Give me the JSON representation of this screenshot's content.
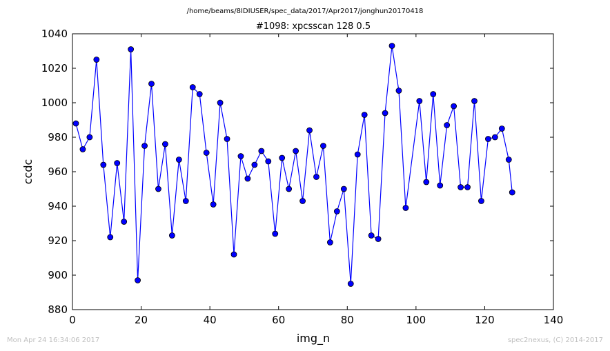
{
  "path_title": "/home/beams/8IDIUSER/spec_data/2017/Apr2017/jonghun20170418",
  "footer": {
    "timestamp": "Mon Apr 24 16:34:06 2017",
    "credit": "spec2nexus, (C) 2014-2017"
  },
  "colors": {
    "line": "#0000ff",
    "marker_fill": "#0000ff",
    "marker_edge": "#000000"
  },
  "chart_data": {
    "type": "line",
    "title": "#1098: xpcsscan 128 0.5",
    "xlabel": "img_n",
    "ylabel": "ccdc",
    "xlim": [
      0,
      140
    ],
    "ylim": [
      880,
      1040
    ],
    "xticks": [
      0,
      20,
      40,
      60,
      80,
      100,
      120,
      140
    ],
    "yticks": [
      880,
      900,
      920,
      940,
      960,
      980,
      1000,
      1020,
      1040
    ],
    "grid": false,
    "legend": "none",
    "series": [
      {
        "x": [
          1,
          3,
          5,
          7,
          9,
          11,
          13,
          15,
          17,
          19,
          21,
          23,
          25,
          27,
          29,
          31,
          33,
          35,
          37,
          39,
          41,
          43,
          45,
          47,
          49,
          51,
          53,
          55,
          57,
          59,
          61,
          63,
          65,
          67,
          69,
          71,
          73,
          75,
          77,
          79,
          81,
          83,
          85,
          87,
          89,
          91,
          93,
          95,
          97,
          101,
          103,
          105,
          107,
          109,
          111,
          113,
          115,
          117,
          119,
          121,
          123,
          125,
          127,
          128
        ],
        "y": [
          988,
          973,
          980,
          1025,
          964,
          922,
          965,
          931,
          1031,
          897,
          975,
          1011,
          950,
          976,
          923,
          967,
          943,
          1009,
          1005,
          971,
          941,
          1000,
          979,
          912,
          969,
          956,
          964,
          972,
          966,
          924,
          968,
          950,
          972,
          943,
          984,
          957,
          975,
          919,
          937,
          950,
          895,
          970,
          993,
          923,
          921,
          994,
          1033,
          1007,
          939,
          1001,
          954,
          1005,
          952,
          987,
          998,
          951,
          951,
          1001,
          943,
          979,
          980,
          985,
          967,
          948
        ]
      }
    ]
  }
}
